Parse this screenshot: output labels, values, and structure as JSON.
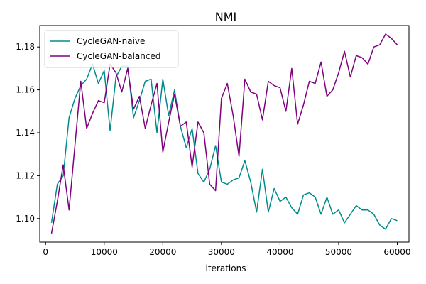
{
  "chart_data": {
    "type": "line",
    "title": "NMI",
    "xlabel": "iterations",
    "ylabel": "",
    "xlim": [
      -1000,
      62000
    ],
    "ylim": [
      1.089,
      1.19
    ],
    "xticks": [
      0,
      10000,
      20000,
      30000,
      40000,
      50000,
      60000
    ],
    "yticks": [
      1.1,
      1.12,
      1.14,
      1.16,
      1.18
    ],
    "ytick_labels": [
      "1.10",
      "1.12",
      "1.14",
      "1.16",
      "1.18"
    ],
    "legend_position": "upper-left",
    "grid": false,
    "x": [
      1000,
      2000,
      3000,
      4000,
      5000,
      6000,
      7000,
      8000,
      9000,
      10000,
      11000,
      12000,
      13000,
      14000,
      15000,
      16000,
      17000,
      18000,
      19000,
      20000,
      21000,
      22000,
      23000,
      24000,
      25000,
      26000,
      27000,
      28000,
      29000,
      30000,
      31000,
      32000,
      33000,
      34000,
      35000,
      36000,
      37000,
      38000,
      39000,
      40000,
      41000,
      42000,
      43000,
      44000,
      45000,
      46000,
      47000,
      48000,
      49000,
      50000,
      51000,
      52000,
      53000,
      54000,
      55000,
      56000,
      57000,
      58000,
      59000,
      60000
    ],
    "series": [
      {
        "name": "CycleGAN-naive",
        "color": "#008b8b",
        "values": [
          1.098,
          1.116,
          1.12,
          1.147,
          1.156,
          1.162,
          1.165,
          1.172,
          1.163,
          1.169,
          1.141,
          1.166,
          1.171,
          1.171,
          1.147,
          1.155,
          1.164,
          1.165,
          1.14,
          1.165,
          1.148,
          1.16,
          1.143,
          1.133,
          1.142,
          1.121,
          1.117,
          1.123,
          1.134,
          1.117,
          1.116,
          1.118,
          1.119,
          1.127,
          1.117,
          1.103,
          1.123,
          1.103,
          1.114,
          1.108,
          1.11,
          1.105,
          1.102,
          1.111,
          1.112,
          1.11,
          1.102,
          1.11,
          1.102,
          1.104,
          1.098,
          1.102,
          1.106,
          1.104,
          1.104,
          1.102,
          1.097,
          1.095,
          1.1,
          1.099
        ]
      },
      {
        "name": "CycleGAN-balanced",
        "color": "#800080",
        "values": [
          1.093,
          1.108,
          1.125,
          1.104,
          1.134,
          1.164,
          1.142,
          1.149,
          1.155,
          1.154,
          1.172,
          1.168,
          1.159,
          1.17,
          1.151,
          1.157,
          1.142,
          1.153,
          1.163,
          1.131,
          1.145,
          1.158,
          1.143,
          1.145,
          1.124,
          1.145,
          1.14,
          1.116,
          1.113,
          1.156,
          1.163,
          1.148,
          1.129,
          1.165,
          1.159,
          1.158,
          1.146,
          1.164,
          1.162,
          1.161,
          1.15,
          1.17,
          1.144,
          1.153,
          1.164,
          1.163,
          1.173,
          1.157,
          1.16,
          1.168,
          1.178,
          1.166,
          1.176,
          1.175,
          1.172,
          1.18,
          1.181,
          1.186,
          1.184,
          1.181
        ]
      }
    ]
  }
}
